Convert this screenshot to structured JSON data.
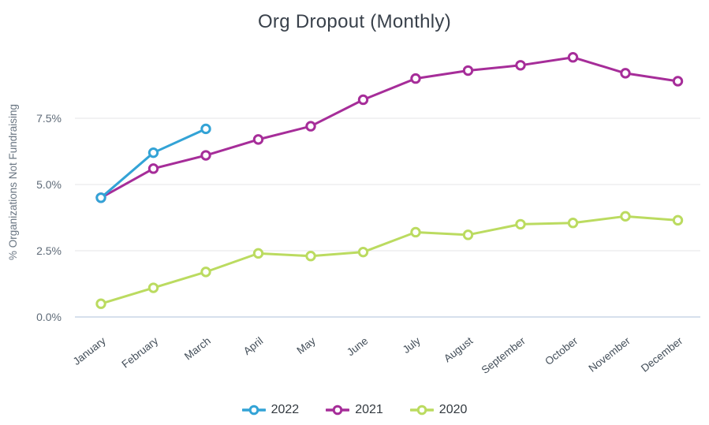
{
  "chart": {
    "title": "Org Dropout (Monthly)",
    "ylabel": "% Organizations Not Fundraising",
    "colors": {
      "background": "#ffffff",
      "title_text": "#39414b",
      "grid_line": "#e9e9ec",
      "baseline": "#c9d5e6",
      "ytick_text": "#5f6b78",
      "xtick_text": "#434e59",
      "legend_text": "#333a40"
    }
  },
  "chart_data": {
    "type": "line",
    "title": "Org Dropout (Monthly)",
    "xlabel": "",
    "ylabel": "% Organizations Not Fundraising",
    "categories": [
      "January",
      "February",
      "March",
      "April",
      "May",
      "June",
      "July",
      "August",
      "September",
      "October",
      "November",
      "December"
    ],
    "yticks": [
      {
        "label": "0.0%",
        "value": 0
      },
      {
        "label": "2.5%",
        "value": 2.5
      },
      {
        "label": "5.0%",
        "value": 5.0
      },
      {
        "label": "7.5%",
        "value": 7.5
      }
    ],
    "ylim": [
      0,
      10.2
    ],
    "grid": "horizontal",
    "legend_position": "bottom",
    "marker": "open-circle",
    "series": [
      {
        "name": "2022",
        "color": "#33a3d6",
        "values": [
          4.5,
          6.2,
          7.1
        ]
      },
      {
        "name": "2021",
        "color": "#a62d99",
        "values": [
          4.5,
          5.6,
          6.1,
          6.7,
          7.2,
          8.2,
          9.0,
          9.3,
          9.5,
          9.8,
          9.2,
          8.9
        ]
      },
      {
        "name": "2020",
        "color": "#bbdb60",
        "values": [
          0.5,
          1.1,
          1.7,
          2.4,
          2.3,
          2.45,
          3.2,
          3.1,
          3.5,
          3.55,
          3.8,
          3.65
        ]
      }
    ]
  }
}
